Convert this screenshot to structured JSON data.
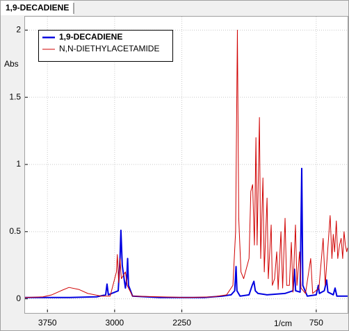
{
  "tab": "1,9-DECADIENE",
  "chart_data": {
    "type": "line",
    "xlabel": "1/cm",
    "ylabel": "Abs",
    "xlim": [
      4000,
      400
    ],
    "ylim": [
      -0.1,
      2.1
    ],
    "xticks": [
      3750,
      3000,
      2250,
      750
    ],
    "yticks": [
      0,
      0.5,
      1,
      1.5,
      2
    ],
    "grid": true,
    "legend": "top-left",
    "series": [
      {
        "name": "1,9-DECADIENE",
        "color": "#0000e0",
        "x": [
          4000,
          3500,
          3200,
          3100,
          3085,
          3070,
          2960,
          2940,
          2930,
          2915,
          2880,
          2865,
          2855,
          2845,
          2800,
          2500,
          2000,
          1800,
          1700,
          1660,
          1645,
          1635,
          1600,
          1500,
          1465,
          1446,
          1430,
          1400,
          1300,
          1100,
          1010,
          993,
          980,
          930,
          912,
          900,
          850,
          750,
          727,
          715,
          660,
          634,
          620,
          560,
          540,
          520,
          450,
          400
        ],
        "values": [
          0.01,
          0.01,
          0.015,
          0.03,
          0.11,
          0.03,
          0.06,
          0.3,
          0.51,
          0.25,
          0.08,
          0.15,
          0.3,
          0.1,
          0.02,
          0.01,
          0.01,
          0.02,
          0.03,
          0.06,
          0.24,
          0.06,
          0.02,
          0.03,
          0.1,
          0.13,
          0.06,
          0.04,
          0.03,
          0.04,
          0.06,
          0.22,
          0.06,
          0.05,
          0.97,
          0.1,
          0.02,
          0.03,
          0.1,
          0.04,
          0.06,
          0.14,
          0.05,
          0.03,
          0.08,
          0.02,
          0.02,
          0.02
        ]
      },
      {
        "name": "N,N-DIETHYLACETAMIDE",
        "color": "#d00000",
        "x": [
          4000,
          3800,
          3700,
          3600,
          3510,
          3400,
          3300,
          3150,
          3050,
          2980,
          2970,
          2955,
          2940,
          2925,
          2880,
          2860,
          2800,
          2200,
          1900,
          1750,
          1680,
          1650,
          1630,
          1615,
          1590,
          1560,
          1500,
          1480,
          1460,
          1440,
          1423,
          1410,
          1384,
          1370,
          1345,
          1330,
          1299,
          1285,
          1253,
          1240,
          1215,
          1191,
          1175,
          1144,
          1125,
          1098,
          1080,
          1050,
          1028,
          1010,
          982,
          965,
          936,
          920,
          870,
          812,
          790,
          720,
          673,
          650,
          595,
          575,
          560,
          545,
          526,
          510,
          490,
          472,
          455,
          440,
          425,
          410,
          400
        ],
        "values": [
          0.01,
          0.015,
          0.03,
          0.06,
          0.085,
          0.07,
          0.04,
          0.02,
          0.02,
          0.2,
          0.33,
          0.12,
          0.3,
          0.15,
          0.2,
          0.1,
          0.02,
          0.01,
          0.015,
          0.03,
          0.1,
          0.5,
          2.0,
          0.6,
          0.2,
          0.15,
          0.3,
          0.8,
          0.85,
          0.4,
          1.2,
          0.4,
          1.35,
          0.3,
          0.9,
          0.2,
          0.75,
          0.15,
          0.55,
          0.1,
          0.15,
          0.35,
          0.07,
          0.5,
          0.08,
          0.6,
          0.1,
          0.1,
          0.42,
          0.05,
          0.55,
          0.1,
          0.35,
          0.08,
          0.04,
          0.3,
          0.04,
          0.08,
          0.45,
          0.1,
          0.62,
          0.3,
          0.48,
          0.35,
          0.58,
          0.3,
          0.4,
          0.45,
          0.3,
          0.5,
          0.4,
          0.35,
          0.38
        ]
      }
    ]
  }
}
